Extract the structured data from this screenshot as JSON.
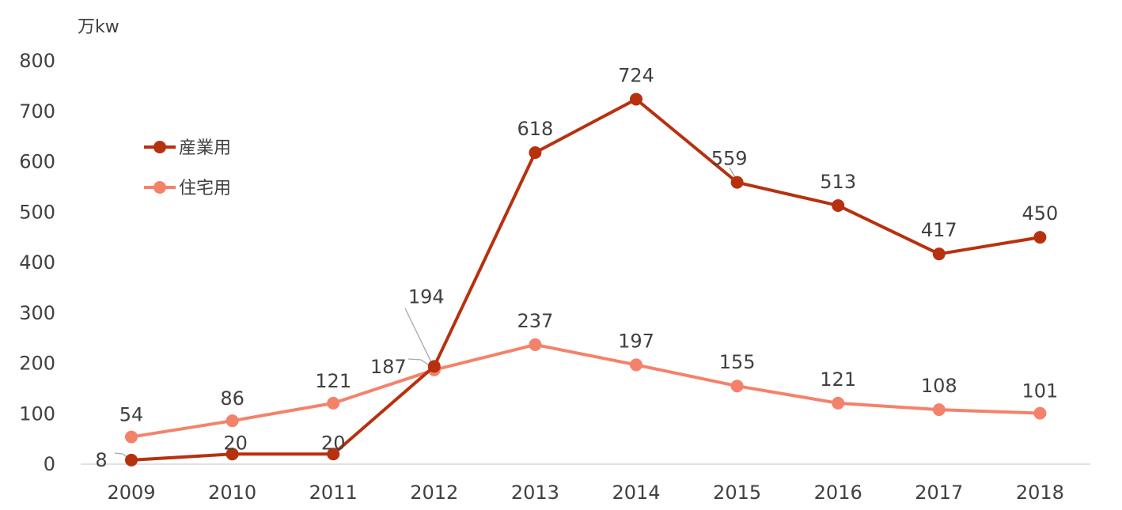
{
  "chart_data": {
    "type": "line",
    "unit_label": "万kw",
    "x": [
      "2009",
      "2010",
      "2011",
      "2012",
      "2013",
      "2014",
      "2015",
      "2016",
      "2017",
      "2018"
    ],
    "ylim": [
      0,
      800
    ],
    "yticks": [
      0,
      100,
      200,
      300,
      400,
      500,
      600,
      700,
      800
    ],
    "grid": false,
    "legend_position": "top-left",
    "series": [
      {
        "name": "産業用",
        "color": "#b7310f",
        "values": [
          8,
          20,
          20,
          194,
          618,
          724,
          559,
          513,
          417,
          450
        ]
      },
      {
        "name": "住宅用",
        "color": "#f4826a",
        "values": [
          54,
          86,
          121,
          187,
          237,
          197,
          155,
          121,
          108,
          101
        ]
      }
    ]
  }
}
